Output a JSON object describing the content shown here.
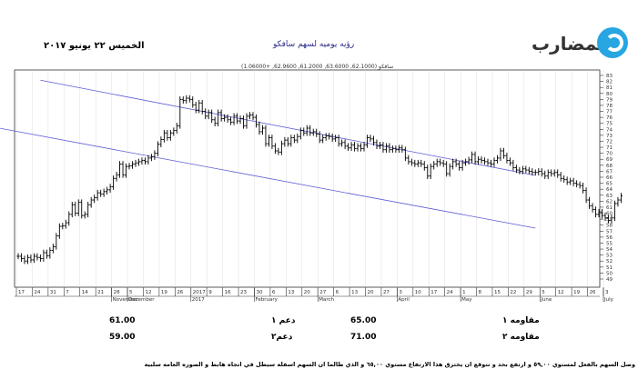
{
  "header": {
    "date": "الخميس ٢٢ يونيو ٢٠١٧",
    "title": "رؤيه يوميه لسهم سافكو",
    "logo_text": "المضارب",
    "stray_mark": "4"
  },
  "chart_data": {
    "type": "candlestick",
    "title": "رؤيه يوميه لسهم سافكو",
    "legend": "سافكو (62.1000, 63.6000, 61.2000, 62.9600, +1.06000)",
    "ylim": [
      48,
      83
    ],
    "yticks": [
      49,
      50,
      51,
      52,
      53,
      54,
      55,
      56,
      57,
      58,
      59,
      60,
      61,
      62,
      63,
      64,
      65,
      66,
      67,
      68,
      69,
      70,
      71,
      72,
      73,
      74,
      75,
      76,
      77,
      78,
      79,
      80,
      81,
      82,
      83
    ],
    "xticks": [
      "17",
      "24",
      "31",
      "7",
      "14",
      "21",
      "28",
      "5",
      "12",
      "19",
      "26",
      "2017",
      "9",
      "16",
      "23",
      "30",
      "6",
      "13",
      "20",
      "27",
      "6",
      "13",
      "20",
      "27",
      "3",
      "10",
      "17",
      "24",
      "1",
      "8",
      "15",
      "22",
      "29",
      "5",
      "12",
      "19",
      "26",
      "3"
    ],
    "month_labels": [
      "November",
      "December",
      "2017",
      "February",
      "March",
      "April",
      "May",
      "June",
      "July"
    ],
    "channel_upper": {
      "start": [
        7,
        82.2
      ],
      "end": [
        163,
        66.3
      ]
    },
    "channel_lower": {
      "start": [
        -7,
        74.3
      ],
      "end": [
        163,
        57.5
      ]
    },
    "close": [
      52.8,
      52.4,
      52.0,
      52.6,
      52.2,
      52.8,
      52.6,
      52.4,
      53.4,
      52.9,
      53.8,
      54.4,
      56.2,
      57.8,
      57.9,
      58.4,
      59.8,
      61.4,
      60.0,
      61.8,
      59.6,
      59.8,
      61.4,
      62.2,
      62.6,
      63.4,
      63.2,
      63.6,
      63.9,
      64.4,
      65.8,
      66.4,
      68.2,
      66.4,
      67.8,
      67.9,
      68.2,
      68.4,
      68.6,
      68.8,
      68.6,
      69.2,
      69.4,
      70.0,
      71.5,
      72.3,
      73.4,
      72.6,
      73.4,
      73.8,
      74.6,
      79.0,
      78.8,
      79.2,
      79.0,
      78.1,
      77.2,
      78.4,
      77.0,
      76.2,
      76.8,
      75.6,
      75.0,
      76.8,
      75.8,
      76.0,
      75.6,
      75.2,
      76.2,
      75.4,
      75.8,
      74.6,
      76.2,
      76.4,
      76.0,
      74.8,
      73.6,
      74.2,
      71.6,
      72.6,
      71.2,
      70.4,
      70.2,
      71.6,
      72.2,
      71.6,
      72.6,
      72.2,
      72.8,
      73.8,
      73.4,
      74.2,
      73.4,
      73.6,
      73.2,
      72.2,
      72.6,
      72.9,
      72.8,
      72.4,
      72.6,
      71.6,
      71.8,
      71.2,
      70.9,
      71.4,
      70.8,
      71.2,
      70.8,
      71.4,
      72.6,
      72.4,
      71.8,
      71.2,
      71.4,
      70.6,
      71.2,
      70.6,
      70.8,
      70.6,
      70.9,
      70.6,
      69.2,
      68.6,
      68.4,
      68.2,
      68.4,
      68.2,
      67.6,
      66.2,
      67.8,
      68.2,
      68.6,
      68.4,
      68.2,
      66.6,
      67.8,
      68.6,
      68.2,
      67.6,
      68.4,
      68.6,
      68.9,
      69.8,
      68.6,
      69.0,
      68.8,
      68.6,
      68.4,
      68.2,
      68.8,
      69.2,
      70.4,
      69.6,
      68.8,
      68.4,
      67.6,
      67.2,
      67.0,
      67.4,
      67.2,
      67.0,
      66.8,
      66.8,
      67.0,
      66.6,
      66.2,
      66.8,
      66.6,
      66.8,
      66.4,
      65.8,
      65.6,
      65.2,
      65.4,
      65.0,
      64.8,
      64.6,
      63.8,
      62.2,
      61.2,
      60.6,
      59.8,
      60.2,
      59.6,
      59.2,
      58.8,
      59.2,
      61.6,
      62.2,
      62.9
    ],
    "levels": [
      {
        "label": "مقاومه ١",
        "value": "65.00"
      },
      {
        "label": "دعم ١",
        "value": "61.00"
      },
      {
        "label": "مقاومه ٢",
        "value": "71.00"
      },
      {
        "label": "دعم٢",
        "value": "59.00"
      }
    ]
  },
  "note": "وصل السهم بالفعل لمستوي ٥٩,٠٠ و ارتفع بحد و نتوقع ان يخترق هذا الارتفاع مستوي ٦٥,٠٠ و الذي طالما ان السهم اسفله سيظل في اتجاه هابط و الصوره العامه سلبيه"
}
